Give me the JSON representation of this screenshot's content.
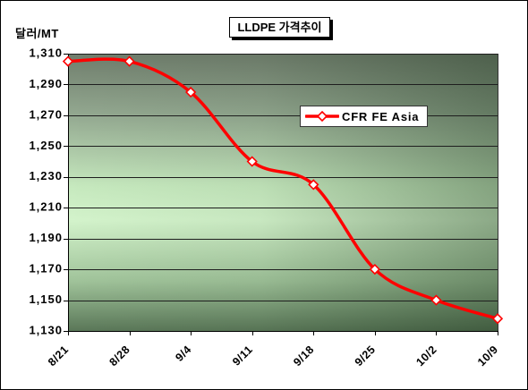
{
  "chart_data": {
    "type": "line",
    "title": "LLDPE 가격추이",
    "xlabel": "",
    "ylabel": "달러/MT",
    "categories": [
      "8/21",
      "8/28",
      "9/4",
      "9/11",
      "9/18",
      "9/25",
      "10/2",
      "10/9"
    ],
    "series": [
      {
        "name": "CFR FE Asia",
        "values": [
          1305,
          1305,
          1285,
          1240,
          1225,
          1170,
          1150,
          1138
        ],
        "color": "#ff0000",
        "marker": "diamond",
        "marker_fill": "#ffffff",
        "smooth": true
      }
    ],
    "ylim": [
      1130,
      1310
    ],
    "yticks": [
      1130,
      1150,
      1170,
      1190,
      1210,
      1230,
      1250,
      1270,
      1290,
      1310
    ],
    "ytick_labels": [
      "1,130",
      "1,150",
      "1,170",
      "1,190",
      "1,210",
      "1,230",
      "1,250",
      "1,270",
      "1,290",
      "1,310"
    ],
    "grid": true,
    "legend_position": "upper-right"
  }
}
